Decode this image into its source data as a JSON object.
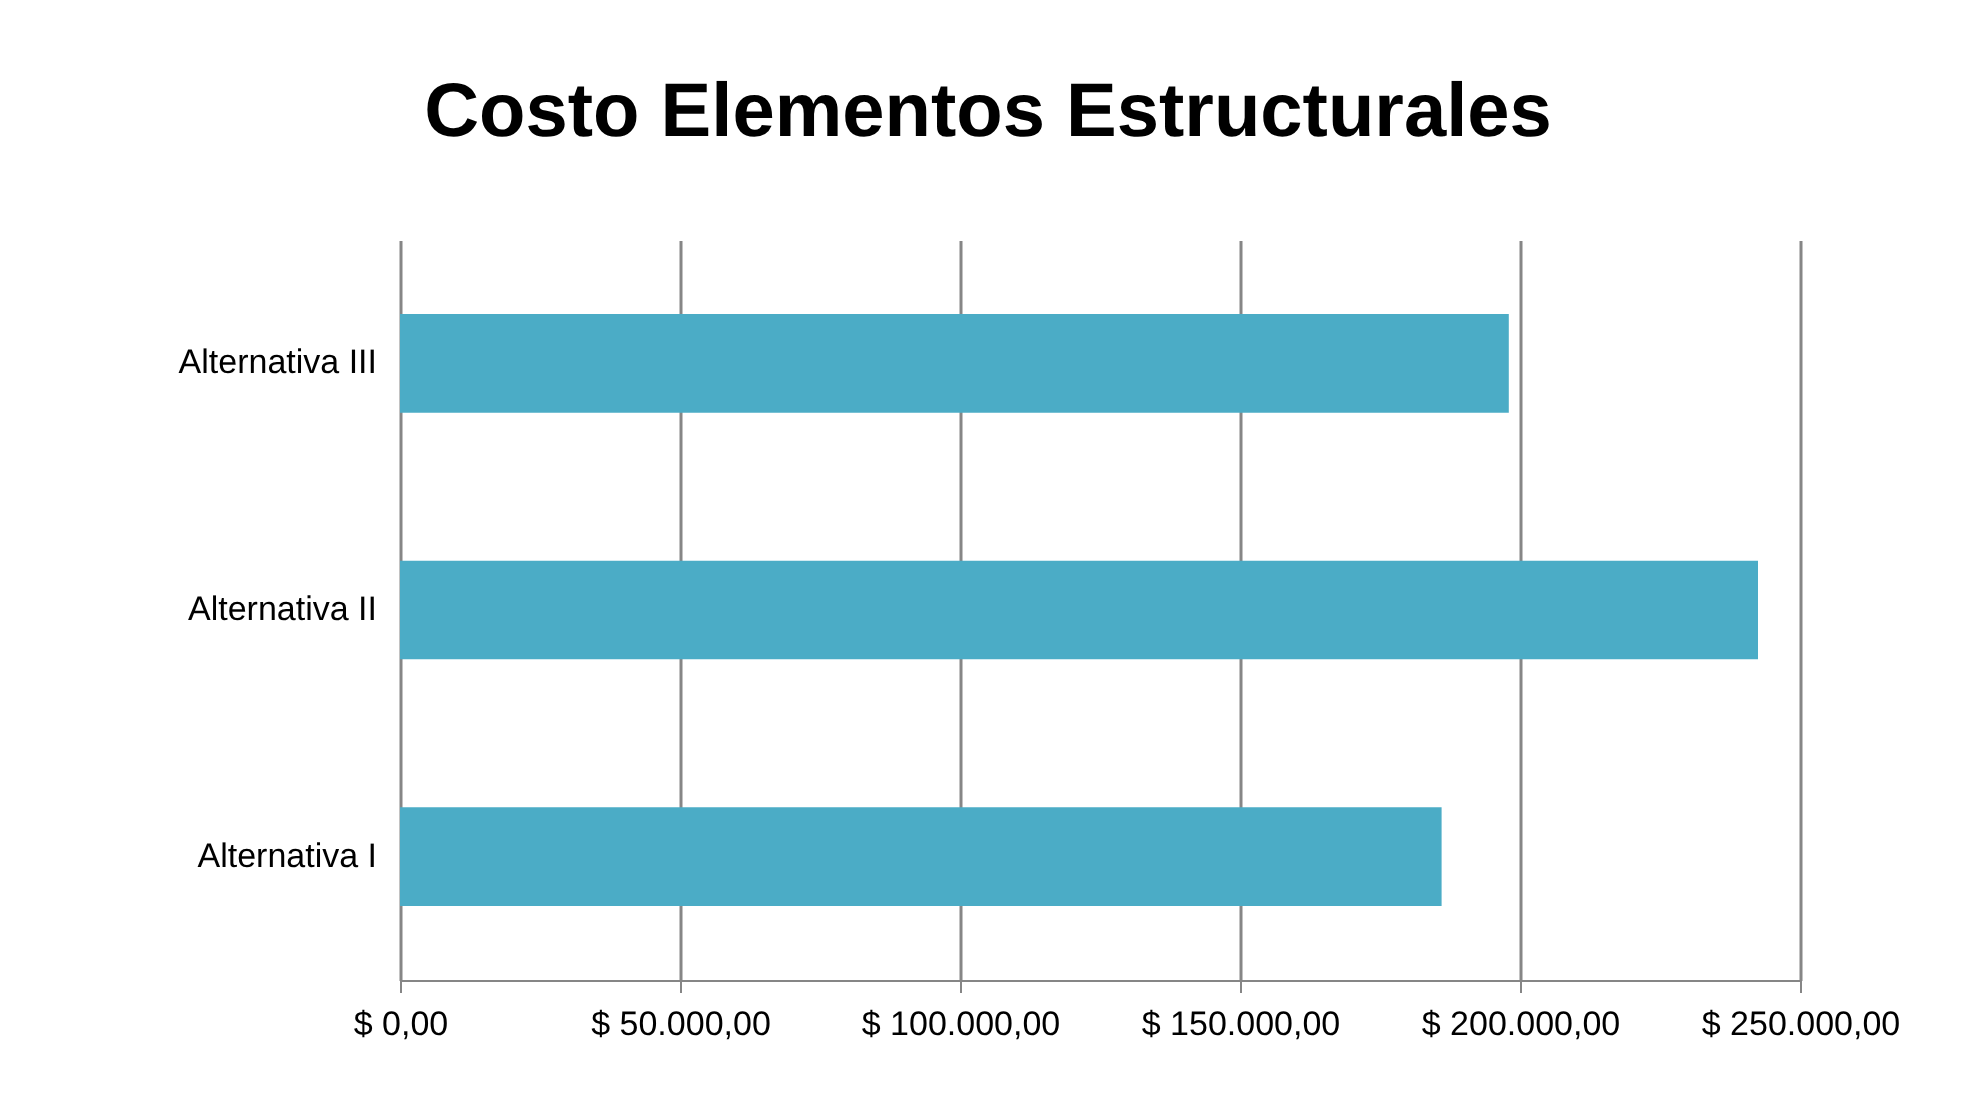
{
  "chart_data": {
    "type": "bar",
    "orientation": "horizontal",
    "title": "Costo Elementos Estructurales",
    "categories": [
      "Alternativa III",
      "Alternativa II",
      "Alternativa I"
    ],
    "values": [
      198000,
      242500,
      186000
    ],
    "color": "#4bacc6",
    "xlim": [
      0,
      250000
    ],
    "xticks": [
      {
        "value": 0,
        "label": "$ 0,00"
      },
      {
        "value": 50000,
        "label": "$ 50.000,00"
      },
      {
        "value": 100000,
        "label": "$ 100.000,00"
      },
      {
        "value": 150000,
        "label": "$ 150.000,00"
      },
      {
        "value": 200000,
        "label": "$ 200.000,00"
      },
      {
        "value": 250000,
        "label": "$ 250.000,00"
      }
    ],
    "grid": "x"
  }
}
